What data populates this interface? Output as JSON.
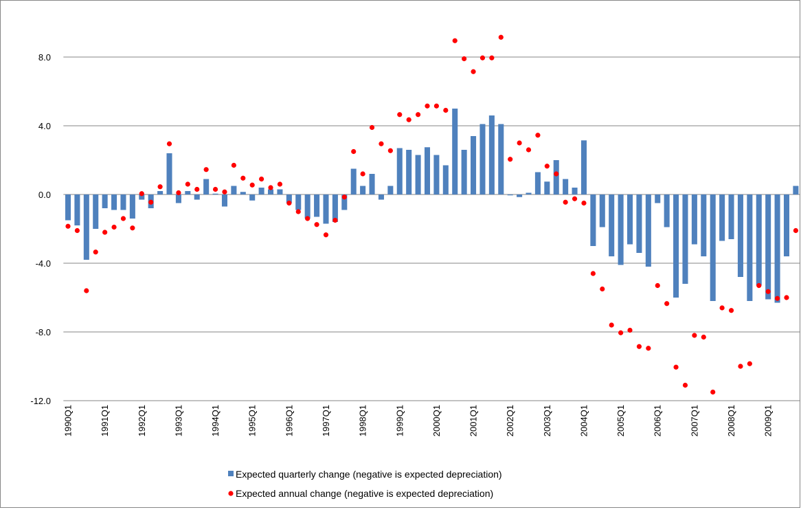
{
  "chart_data": {
    "type": "bar",
    "categories": [
      "1990Q1",
      null,
      null,
      null,
      "1991Q1",
      null,
      null,
      null,
      "1992Q1",
      null,
      null,
      null,
      "1993Q1",
      null,
      null,
      null,
      "1994Q1",
      null,
      null,
      null,
      "1995Q1",
      null,
      null,
      null,
      "1996Q1",
      null,
      null,
      null,
      "1997Q1",
      null,
      null,
      null,
      "1998Q1",
      null,
      null,
      null,
      "1999Q1",
      null,
      null,
      null,
      "2000Q1",
      null,
      null,
      null,
      "2001Q1",
      null,
      null,
      null,
      "2002Q1",
      null,
      null,
      null,
      "2003Q1",
      null,
      null,
      null,
      "2004Q1",
      null,
      null,
      null,
      "2005Q1",
      null,
      null,
      null,
      "2006Q1",
      null,
      null,
      null,
      "2007Q1",
      null,
      null,
      null,
      "2008Q1",
      null,
      null,
      null,
      "2009Q1",
      null,
      null,
      null
    ],
    "series": [
      {
        "name": "Expected quarterly change (negative is expected depreciation)",
        "type": "bar",
        "color": "#4f81bd",
        "values": [
          -1.5,
          -1.8,
          -3.8,
          -2.0,
          -0.8,
          -0.9,
          -0.9,
          -1.4,
          -0.3,
          -0.8,
          0.2,
          2.4,
          -0.5,
          0.2,
          -0.3,
          0.9,
          0.05,
          -0.7,
          0.5,
          0.15,
          -0.35,
          0.4,
          0.3,
          0.3,
          -0.5,
          -0.9,
          -1.4,
          -1.3,
          -1.7,
          -1.6,
          -0.9,
          1.5,
          0.5,
          1.2,
          -0.3,
          0.5,
          2.7,
          2.6,
          2.3,
          2.75,
          2.3,
          1.7,
          5.0,
          2.6,
          3.4,
          4.1,
          4.6,
          4.1,
          -0.05,
          -0.15,
          0.1,
          1.3,
          0.75,
          2.0,
          0.9,
          0.4,
          3.15,
          -3.0,
          -1.9,
          -3.6,
          -4.1,
          -2.9,
          -3.4,
          -4.2,
          -0.5,
          -1.9,
          -6.0,
          -5.2,
          -2.9,
          -3.6,
          -6.2,
          -2.7,
          -2.6,
          -4.8,
          -6.2,
          -5.3,
          -6.1,
          -6.3,
          -3.6,
          0.5
        ]
      },
      {
        "name": "Expected annual change (negative is expected depreciation)",
        "type": "scatter",
        "color": "#ff0000",
        "values": [
          -1.85,
          -2.1,
          -5.6,
          -3.35,
          -2.2,
          -1.9,
          -1.4,
          -1.95,
          0.05,
          -0.45,
          0.45,
          2.95,
          0.1,
          0.6,
          0.3,
          1.45,
          0.3,
          0.15,
          1.7,
          0.95,
          0.55,
          0.9,
          0.4,
          0.6,
          -0.5,
          -1.0,
          -1.4,
          -1.75,
          -2.35,
          -1.5,
          -0.15,
          2.5,
          1.2,
          3.9,
          2.95,
          2.55,
          4.65,
          4.35,
          4.65,
          5.15,
          5.15,
          4.9,
          8.95,
          7.9,
          7.15,
          7.95,
          7.95,
          9.15,
          2.05,
          3.0,
          2.6,
          3.45,
          1.65,
          1.2,
          -0.45,
          -0.25,
          -0.5,
          -4.6,
          -5.5,
          -7.6,
          -8.05,
          -7.9,
          -8.85,
          -8.95,
          -5.3,
          -6.35,
          -10.05,
          -11.1,
          -8.2,
          -8.3,
          -11.5,
          -6.6,
          -6.75,
          -10.0,
          -9.85,
          -5.3,
          -5.65,
          -6.05,
          -6.0,
          -2.1
        ]
      }
    ],
    "ylim": [
      -12,
      10
    ],
    "yticks": [
      {
        "value": -12,
        "label": "-12.0"
      },
      {
        "value": -8,
        "label": "-8.0"
      },
      {
        "value": -4,
        "label": "-4.0"
      },
      {
        "value": 0,
        "label": "0.0"
      },
      {
        "value": 4,
        "label": "4.0"
      },
      {
        "value": 8,
        "label": "8.0"
      }
    ],
    "grid": true,
    "legend": "bottom"
  }
}
